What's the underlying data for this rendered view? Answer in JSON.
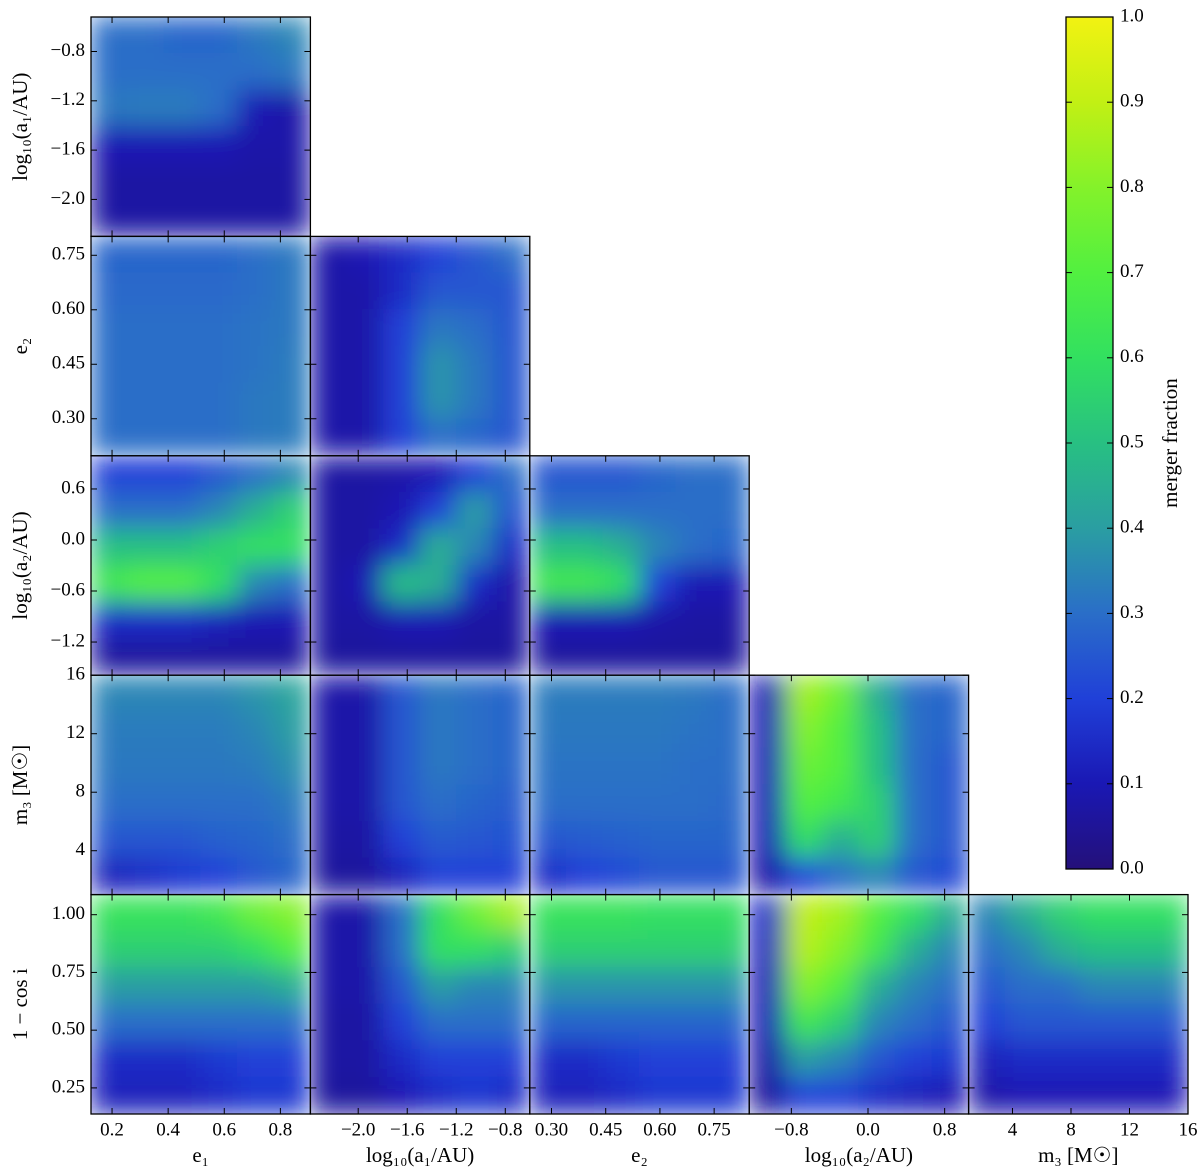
{
  "chart_data": {
    "type": "heatmap",
    "colorbar": {
      "label": "merger fraction",
      "lim": [
        0,
        1
      ],
      "ticks": [
        {
          "value": 0,
          "label": "0.0"
        },
        0.1,
        0.2,
        0.3,
        0.4,
        0.5,
        0.6,
        0.7,
        0.8,
        0.9,
        {
          "value": 1,
          "label": "1.0"
        }
      ]
    },
    "colormap": [
      "#24107a",
      "#1a18b4",
      "#2040d8",
      "#2a6ec8",
      "#2a9ea2",
      "#28c082",
      "#32e060",
      "#52f040",
      "#84f22a",
      "#c2f014",
      "#f2f212"
    ],
    "variables": [
      {
        "label": "e₁",
        "xlim": [
          0.125,
          0.907
        ],
        "xticks": [
          0.2,
          0.4,
          0.6,
          0.8
        ]
      },
      {
        "label": "log₁₀(a₁/AU)",
        "xlim": [
          -2.39,
          -0.6
        ],
        "ylim": [
          -2.3,
          -0.52
        ],
        "xticks": [
          {
            "value": -2,
            "label": "−2.0"
          },
          {
            "value": -1.6,
            "label": "−1.6"
          },
          {
            "value": -1.2,
            "label": "−1.2"
          },
          {
            "value": -0.8,
            "label": "−0.8"
          }
        ],
        "yticks": [
          {
            "value": -2,
            "label": "−2.0"
          },
          {
            "value": -1.6,
            "label": "−1.6"
          },
          {
            "value": -1.2,
            "label": "−1.2"
          },
          {
            "value": -0.8,
            "label": "−0.8"
          }
        ]
      },
      {
        "label": "e₂",
        "xlim": [
          0.24,
          0.847
        ],
        "ylim": [
          0.198,
          0.802
        ],
        "xticks": [
          {
            "value": 0.3,
            "label": "0.30"
          },
          0.45,
          {
            "value": 0.6,
            "label": "0.60"
          },
          0.75
        ],
        "yticks": [
          {
            "value": 0.3,
            "label": "0.30"
          },
          0.45,
          {
            "value": 0.6,
            "label": "0.60"
          },
          0.75
        ]
      },
      {
        "label": "log₁₀(a₂/AU)",
        "xlim": [
          -1.24,
          1.05
        ],
        "ylim": [
          -1.59,
          0.99
        ],
        "xticks": [
          {
            "value": -0.8,
            "label": "−0.8"
          },
          {
            "value": 0,
            "label": "0.0"
          },
          0.8
        ],
        "yticks": [
          {
            "value": -1.2,
            "label": "−1.2"
          },
          {
            "value": -0.6,
            "label": "−0.6"
          },
          {
            "value": 0,
            "label": "0.0"
          },
          0.6
        ]
      },
      {
        "label": "m₃ [M☉]",
        "xlim": [
          1,
          16
        ],
        "ylim": [
          1,
          16
        ],
        "xticks": [
          4,
          8,
          12,
          16
        ],
        "yticks": [
          4,
          8,
          12,
          16
        ]
      },
      {
        "label": "1 − cos i",
        "ylim": [
          0.137,
          1.087
        ],
        "yticks": [
          0.25,
          {
            "value": 0.5,
            "label": "0.50"
          },
          0.75,
          {
            "value": 1,
            "label": "1.00"
          }
        ]
      }
    ],
    "panels": [
      [
        {
          "values": [
            [
              0.3,
              0.3,
              0.28,
              0.28,
              0.32,
              0.35
            ],
            [
              0.3,
              0.3,
              0.3,
              0.3,
              0.3,
              0.32
            ],
            [
              0.32,
              0.33,
              0.33,
              0.3,
              0.1,
              0.08
            ],
            [
              0.1,
              0.1,
              0.1,
              0.1,
              0.08,
              0.08
            ],
            [
              0.07,
              0.07,
              0.07,
              0.07,
              0.07,
              0.07
            ],
            [
              0.07,
              0.07,
              0.07,
              0.07,
              0.07,
              0.07
            ]
          ]
        }
      ],
      [
        {
          "values": [
            [
              0.28,
              0.28,
              0.28,
              0.28,
              0.3,
              0.32
            ],
            [
              0.29,
              0.29,
              0.29,
              0.29,
              0.3,
              0.32
            ],
            [
              0.3,
              0.3,
              0.3,
              0.3,
              0.31,
              0.32
            ],
            [
              0.3,
              0.3,
              0.3,
              0.3,
              0.31,
              0.33
            ],
            [
              0.3,
              0.3,
              0.3,
              0.3,
              0.32,
              0.33
            ],
            [
              0.3,
              0.3,
              0.3,
              0.3,
              0.32,
              0.33
            ]
          ]
        },
        {
          "values": [
            [
              0.08,
              0.1,
              0.15,
              0.2,
              0.25,
              0.3
            ],
            [
              0.08,
              0.08,
              0.15,
              0.25,
              0.25,
              0.25
            ],
            [
              0.08,
              0.08,
              0.2,
              0.32,
              0.3,
              0.25
            ],
            [
              0.08,
              0.08,
              0.2,
              0.38,
              0.32,
              0.25
            ],
            [
              0.08,
              0.08,
              0.2,
              0.38,
              0.32,
              0.25
            ],
            [
              0.08,
              0.08,
              0.2,
              0.3,
              0.28,
              0.25
            ]
          ]
        }
      ],
      [
        {
          "values": [
            [
              0.2,
              0.2,
              0.2,
              0.25,
              0.3,
              0.35
            ],
            [
              0.3,
              0.3,
              0.3,
              0.35,
              0.45,
              0.55
            ],
            [
              0.5,
              0.5,
              0.5,
              0.55,
              0.6,
              0.6
            ],
            [
              0.65,
              0.7,
              0.7,
              0.6,
              0.35,
              0.3
            ],
            [
              0.15,
              0.15,
              0.15,
              0.12,
              0.1,
              0.1
            ],
            [
              0.06,
              0.06,
              0.06,
              0.06,
              0.06,
              0.06
            ]
          ]
        },
        {
          "values": [
            [
              0.07,
              0.07,
              0.08,
              0.1,
              0.2,
              0.3
            ],
            [
              0.07,
              0.07,
              0.1,
              0.2,
              0.4,
              0.25
            ],
            [
              0.07,
              0.07,
              0.15,
              0.45,
              0.35,
              0.15
            ],
            [
              0.07,
              0.1,
              0.5,
              0.45,
              0.15,
              0.08
            ],
            [
              0.07,
              0.07,
              0.1,
              0.1,
              0.07,
              0.07
            ],
            [
              0.06,
              0.06,
              0.06,
              0.06,
              0.06,
              0.06
            ]
          ]
        },
        {
          "values": [
            [
              0.25,
              0.25,
              0.25,
              0.28,
              0.3,
              0.3
            ],
            [
              0.3,
              0.3,
              0.3,
              0.3,
              0.3,
              0.3
            ],
            [
              0.5,
              0.5,
              0.45,
              0.35,
              0.3,
              0.28
            ],
            [
              0.65,
              0.65,
              0.6,
              0.2,
              0.1,
              0.1
            ],
            [
              0.1,
              0.1,
              0.1,
              0.08,
              0.07,
              0.07
            ],
            [
              0.06,
              0.06,
              0.06,
              0.06,
              0.06,
              0.06
            ]
          ]
        }
      ],
      [
        {
          "values": [
            [
              0.35,
              0.35,
              0.35,
              0.35,
              0.38,
              0.42
            ],
            [
              0.33,
              0.33,
              0.33,
              0.33,
              0.35,
              0.4
            ],
            [
              0.32,
              0.32,
              0.32,
              0.32,
              0.33,
              0.37
            ],
            [
              0.3,
              0.3,
              0.3,
              0.3,
              0.3,
              0.33
            ],
            [
              0.25,
              0.25,
              0.25,
              0.27,
              0.28,
              0.3
            ],
            [
              0.12,
              0.15,
              0.18,
              0.2,
              0.25,
              0.28
            ]
          ]
        },
        {
          "values": [
            [
              0.08,
              0.08,
              0.25,
              0.32,
              0.3,
              0.28
            ],
            [
              0.08,
              0.08,
              0.25,
              0.32,
              0.3,
              0.28
            ],
            [
              0.08,
              0.08,
              0.25,
              0.32,
              0.3,
              0.28
            ],
            [
              0.08,
              0.08,
              0.25,
              0.3,
              0.28,
              0.26
            ],
            [
              0.07,
              0.07,
              0.2,
              0.26,
              0.25,
              0.24
            ],
            [
              0.06,
              0.06,
              0.12,
              0.2,
              0.2,
              0.2
            ]
          ]
        },
        {
          "values": [
            [
              0.33,
              0.33,
              0.33,
              0.33,
              0.32,
              0.3
            ],
            [
              0.32,
              0.32,
              0.32,
              0.32,
              0.31,
              0.3
            ],
            [
              0.31,
              0.31,
              0.31,
              0.31,
              0.3,
              0.3
            ],
            [
              0.3,
              0.3,
              0.3,
              0.3,
              0.3,
              0.29
            ],
            [
              0.25,
              0.26,
              0.27,
              0.28,
              0.28,
              0.28
            ],
            [
              0.15,
              0.2,
              0.22,
              0.25,
              0.25,
              0.25
            ]
          ]
        },
        {
          "values": [
            [
              0.1,
              0.85,
              0.75,
              0.45,
              0.3,
              0.28
            ],
            [
              0.1,
              0.8,
              0.7,
              0.5,
              0.3,
              0.28
            ],
            [
              0.1,
              0.75,
              0.7,
              0.5,
              0.3,
              0.25
            ],
            [
              0.1,
              0.7,
              0.65,
              0.55,
              0.3,
              0.25
            ],
            [
              0.1,
              0.6,
              0.45,
              0.55,
              0.3,
              0.25
            ],
            [
              0.08,
              0.2,
              0.3,
              0.35,
              0.25,
              0.22
            ]
          ]
        }
      ],
      [
        {
          "values": [
            [
              0.62,
              0.62,
              0.62,
              0.65,
              0.75,
              0.8
            ],
            [
              0.55,
              0.55,
              0.55,
              0.55,
              0.6,
              0.7
            ],
            [
              0.4,
              0.4,
              0.4,
              0.4,
              0.4,
              0.45
            ],
            [
              0.3,
              0.3,
              0.3,
              0.3,
              0.3,
              0.3
            ],
            [
              0.15,
              0.15,
              0.15,
              0.18,
              0.2,
              0.2
            ],
            [
              0.12,
              0.12,
              0.12,
              0.15,
              0.18,
              0.18
            ]
          ]
        },
        {
          "values": [
            [
              0.08,
              0.08,
              0.3,
              0.6,
              0.75,
              0.85
            ],
            [
              0.08,
              0.08,
              0.3,
              0.6,
              0.6,
              0.55
            ],
            [
              0.08,
              0.08,
              0.25,
              0.4,
              0.35,
              0.35
            ],
            [
              0.07,
              0.07,
              0.2,
              0.3,
              0.3,
              0.3
            ],
            [
              0.07,
              0.07,
              0.15,
              0.2,
              0.2,
              0.2
            ],
            [
              0.06,
              0.06,
              0.1,
              0.15,
              0.18,
              0.15
            ]
          ]
        },
        {
          "values": [
            [
              0.62,
              0.62,
              0.62,
              0.6,
              0.6,
              0.6
            ],
            [
              0.55,
              0.55,
              0.55,
              0.55,
              0.55,
              0.55
            ],
            [
              0.38,
              0.38,
              0.38,
              0.38,
              0.38,
              0.38
            ],
            [
              0.28,
              0.28,
              0.28,
              0.28,
              0.28,
              0.28
            ],
            [
              0.15,
              0.15,
              0.18,
              0.2,
              0.2,
              0.2
            ],
            [
              0.12,
              0.12,
              0.15,
              0.18,
              0.18,
              0.18
            ]
          ]
        },
        {
          "values": [
            [
              0.15,
              0.9,
              0.85,
              0.7,
              0.6,
              0.45
            ],
            [
              0.12,
              0.88,
              0.8,
              0.65,
              0.45,
              0.35
            ],
            [
              0.1,
              0.8,
              0.7,
              0.45,
              0.35,
              0.3
            ],
            [
              0.1,
              0.65,
              0.55,
              0.35,
              0.3,
              0.25
            ],
            [
              0.08,
              0.4,
              0.35,
              0.25,
              0.2,
              0.18
            ],
            [
              0.06,
              0.2,
              0.2,
              0.15,
              0.12,
              0.1
            ]
          ]
        },
        {
          "values": [
            [
              0.35,
              0.45,
              0.55,
              0.6,
              0.6,
              0.6
            ],
            [
              0.3,
              0.35,
              0.45,
              0.5,
              0.5,
              0.5
            ],
            [
              0.25,
              0.3,
              0.3,
              0.35,
              0.35,
              0.35
            ],
            [
              0.2,
              0.25,
              0.25,
              0.25,
              0.25,
              0.25
            ],
            [
              0.12,
              0.15,
              0.15,
              0.15,
              0.15,
              0.15
            ],
            [
              0.08,
              0.1,
              0.1,
              0.1,
              0.1,
              0.1
            ]
          ]
        }
      ]
    ]
  }
}
